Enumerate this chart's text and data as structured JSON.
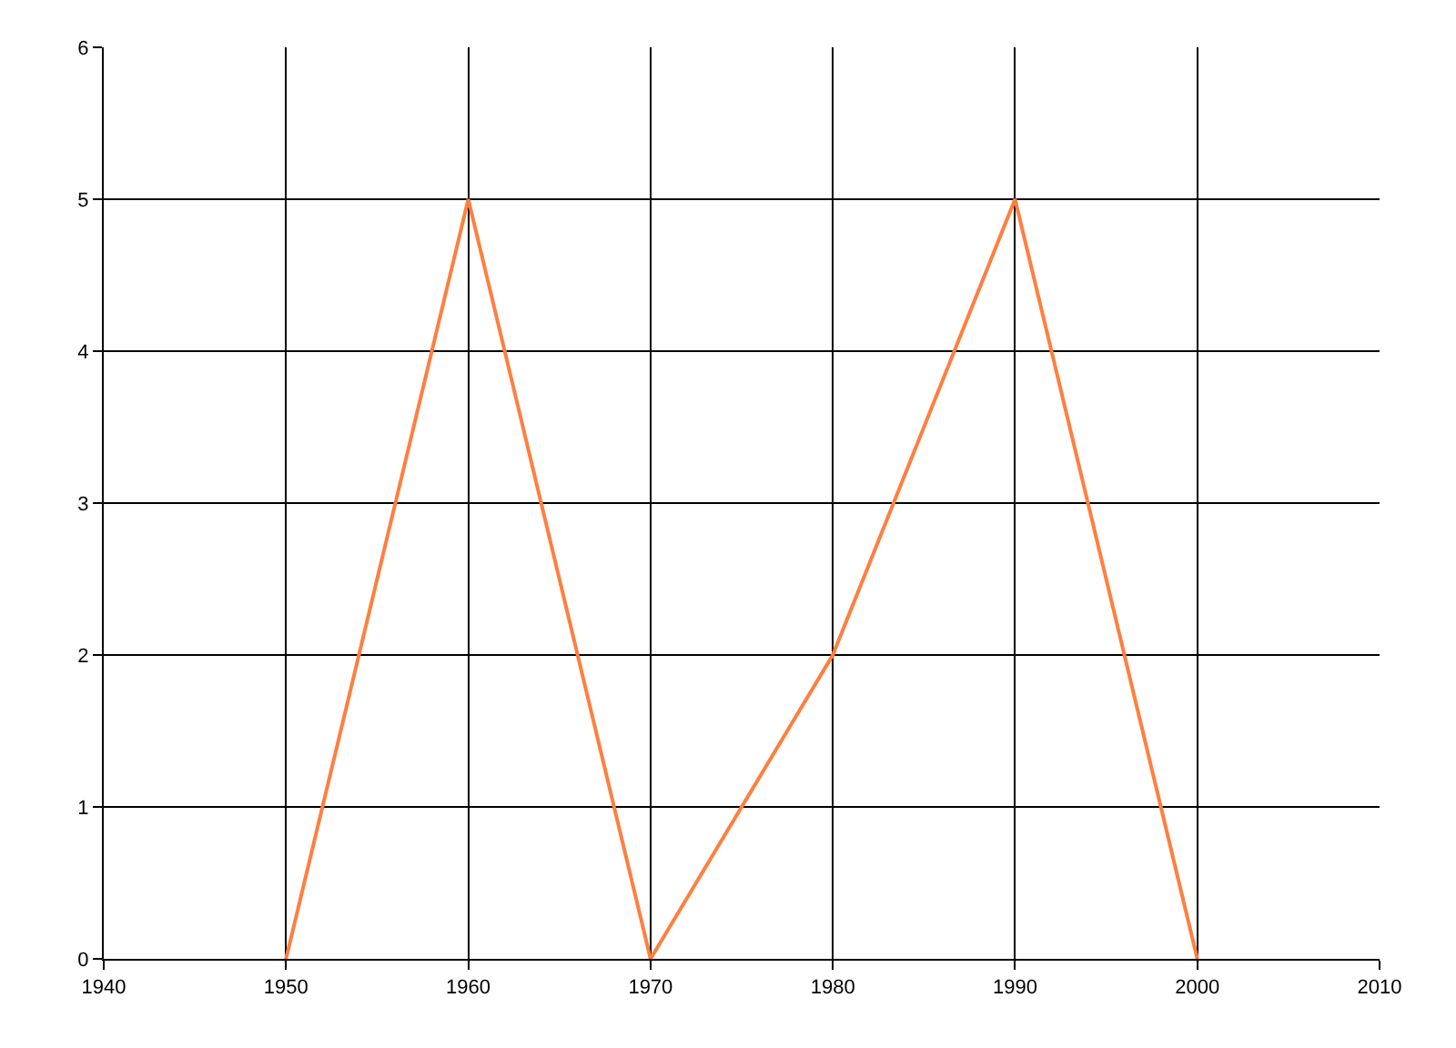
{
  "chart_data": {
    "type": "line",
    "x": [
      1950,
      1960,
      1970,
      1980,
      1990,
      2000
    ],
    "series": [
      {
        "color": "#ff7f3f",
        "values": [
          0,
          5,
          0,
          2,
          5,
          0
        ]
      }
    ],
    "xlim": [
      1940,
      2010
    ],
    "xticks": [
      1940,
      1950,
      1960,
      1970,
      1980,
      1990,
      2000,
      2010
    ],
    "ylim": [
      0,
      6
    ],
    "yticks": [
      0,
      1,
      2,
      3,
      4,
      5,
      6
    ],
    "grid": true,
    "marker": "none",
    "line_style": "solid"
  }
}
